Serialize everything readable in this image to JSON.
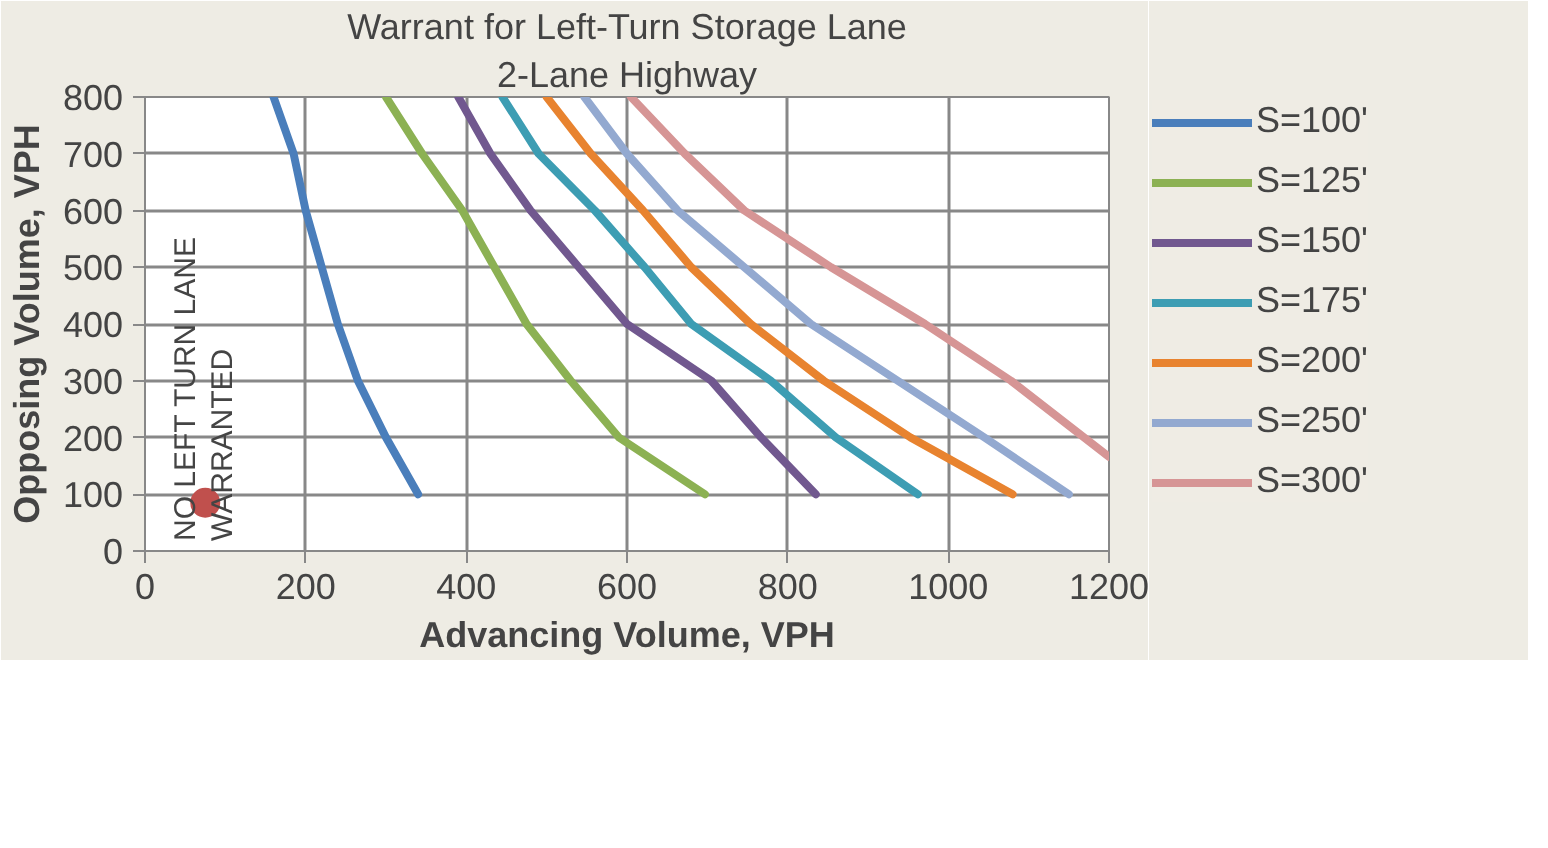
{
  "chart_data": {
    "type": "line",
    "title": "Warrant for Left-Turn Storage Lane",
    "subtitle": "2-Lane Highway",
    "xlabel": "Advancing Volume, VPH",
    "ylabel": "Opposing Volume, VPH",
    "xlim": [
      0,
      1200
    ],
    "xticks": [
      0,
      200,
      400,
      600,
      800,
      1000,
      1200
    ],
    "ylim": [
      0,
      800
    ],
    "yticks": [
      0,
      100,
      200,
      300,
      400,
      500,
      600,
      700,
      800
    ],
    "grid": true,
    "legend": "right",
    "marker": "none",
    "line_style": "solid",
    "annotations": [
      "NO LEFT TURN LANE\nWARRANTED"
    ],
    "series": [
      {
        "name": "S=100'",
        "color": "#4a7ebb",
        "x": [
          160,
          185,
          200,
          220,
          240,
          265,
          300,
          340
        ],
        "values": [
          800,
          700,
          600,
          500,
          400,
          300,
          200,
          100
        ]
      },
      {
        "name": "S=125'",
        "color": "#8cb153",
        "x": [
          300,
          345,
          395,
          435,
          475,
          530,
          590,
          697
        ],
        "values": [
          800,
          700,
          600,
          500,
          400,
          300,
          200,
          100
        ]
      },
      {
        "name": "S=150'",
        "color": "#71588f",
        "x": [
          390,
          430,
          480,
          540,
          600,
          705,
          767,
          835
        ],
        "values": [
          800,
          700,
          600,
          500,
          400,
          300,
          200,
          100
        ]
      },
      {
        "name": "S=175'",
        "color": "#3d9db3",
        "x": [
          445,
          490,
          560,
          622,
          680,
          779,
          860,
          962
        ],
        "values": [
          800,
          700,
          600,
          500,
          400,
          300,
          200,
          100
        ]
      },
      {
        "name": "S=200'",
        "color": "#e8832f",
        "x": [
          500,
          555,
          620,
          680,
          754,
          845,
          953,
          1080
        ],
        "values": [
          800,
          700,
          600,
          500,
          400,
          300,
          200,
          100
        ]
      },
      {
        "name": "S=250'",
        "color": "#93a9d0",
        "x": [
          547,
          600,
          663,
          746,
          829,
          937,
          1045,
          1150
        ],
        "values": [
          800,
          700,
          600,
          500,
          400,
          300,
          200,
          100
        ]
      },
      {
        "name": "S=300'",
        "color": "#d69595",
        "x": [
          605,
          672,
          746,
          854,
          971,
          1078,
          1200
        ],
        "values": [
          800,
          700,
          600,
          500,
          400,
          300,
          166
        ]
      },
      {
        "type": "scatter",
        "color": "#c0504d",
        "marker": "circle",
        "x": [
          75
        ],
        "values": [
          85
        ]
      }
    ]
  }
}
